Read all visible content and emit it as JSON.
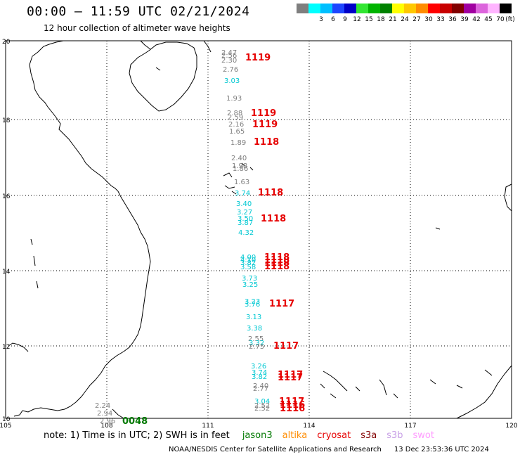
{
  "title": "00:00 – 11:59 UTC 02/21/2024",
  "subtitle": "12 hour collection of altimeter wave heights",
  "color_scale": {
    "unit_label": "(ft)",
    "bins": [
      {
        "label": "",
        "color": "#7f7f7f"
      },
      {
        "label": "3",
        "color": "#00ffff"
      },
      {
        "label": "6",
        "color": "#00bfff"
      },
      {
        "label": "9",
        "color": "#1e46ff"
      },
      {
        "label": "12",
        "color": "#0000c8"
      },
      {
        "label": "15",
        "color": "#32e632"
      },
      {
        "label": "18",
        "color": "#00b400"
      },
      {
        "label": "21",
        "color": "#008200"
      },
      {
        "label": "24",
        "color": "#ffff00"
      },
      {
        "label": "27",
        "color": "#ffc800"
      },
      {
        "label": "30",
        "color": "#ff8c00"
      },
      {
        "label": "33",
        "color": "#ff0000"
      },
      {
        "label": "36",
        "color": "#c80000"
      },
      {
        "label": "39",
        "color": "#820000"
      },
      {
        "label": "42",
        "color": "#a000a0"
      },
      {
        "label": "45",
        "color": "#dc64dc"
      },
      {
        "label": "70",
        "color": "#ffb4ff"
      },
      {
        "label": "",
        "color": "#000000"
      }
    ]
  },
  "axes": {
    "lon_ticks": [
      "105",
      "108",
      "111",
      "114",
      "117",
      "120"
    ],
    "lat_ticks": [
      "20",
      "18",
      "16",
      "14",
      "12",
      "10"
    ]
  },
  "observations": [
    {
      "v": "2.47",
      "c": "#7f7f7f"
    },
    {
      "v": "2.56",
      "c": "#7f7f7f"
    },
    {
      "v": "2.30",
      "c": "#7f7f7f"
    },
    {
      "v": "2.76",
      "c": "#7f7f7f"
    },
    {
      "v": "3.03",
      "c": "#00c8d2"
    },
    {
      "v": "1.93",
      "c": "#7f7f7f"
    },
    {
      "v": "2.88",
      "c": "#7f7f7f"
    },
    {
      "v": "2.59",
      "c": "#7f7f7f"
    },
    {
      "v": "2.16",
      "c": "#7f7f7f"
    },
    {
      "v": "1.65",
      "c": "#7f7f7f"
    },
    {
      "v": "1.89",
      "c": "#7f7f7f"
    },
    {
      "v": "2.40",
      "c": "#7f7f7f"
    },
    {
      "v": "1.98",
      "c": "#7f7f7f"
    },
    {
      "v": "1.86",
      "c": "#7f7f7f"
    },
    {
      "v": "1.63",
      "c": "#7f7f7f"
    },
    {
      "v": "3.74",
      "c": "#00c8d2"
    },
    {
      "v": "3.40",
      "c": "#00c8d2"
    },
    {
      "v": "3.27",
      "c": "#00c8d2"
    },
    {
      "v": "3.50",
      "c": "#00c8d2"
    },
    {
      "v": "3.87",
      "c": "#00c8d2"
    },
    {
      "v": "4.32",
      "c": "#00c8d2"
    },
    {
      "v": "4.00",
      "c": "#00c8d2"
    },
    {
      "v": "4.10",
      "c": "#00c8d2"
    },
    {
      "v": "3.82",
      "c": "#00c8d2"
    },
    {
      "v": "3.58",
      "c": "#00c8d2"
    },
    {
      "v": "3.73",
      "c": "#00c8d2"
    },
    {
      "v": "3.25",
      "c": "#00c8d2"
    },
    {
      "v": "3.23",
      "c": "#00c8d2"
    },
    {
      "v": "3.76",
      "c": "#00c8d2"
    },
    {
      "v": "3.13",
      "c": "#00c8d2"
    },
    {
      "v": "3.38",
      "c": "#00c8d2"
    },
    {
      "v": "2.55",
      "c": "#7f7f7f"
    },
    {
      "v": "3.32",
      "c": "#00c8d2"
    },
    {
      "v": "2.75",
      "c": "#7f7f7f"
    },
    {
      "v": "3.26",
      "c": "#00c8d2"
    },
    {
      "v": "3.74",
      "c": "#00c8d2"
    },
    {
      "v": "3.82",
      "c": "#00c8d2"
    },
    {
      "v": "2.40",
      "c": "#7f7f7f"
    },
    {
      "v": "2.77",
      "c": "#7f7f7f"
    },
    {
      "v": "3.04",
      "c": "#00c8d2"
    },
    {
      "v": "2.52",
      "c": "#7f7f7f"
    },
    {
      "v": "2.52",
      "c": "#7f7f7f"
    },
    {
      "v": "2.24",
      "c": "#7f7f7f"
    },
    {
      "v": "2.94",
      "c": "#7f7f7f"
    },
    {
      "v": "2.96",
      "c": "#7f7f7f"
    }
  ],
  "pass_times": [
    {
      "t": "1119",
      "c": "#e60000"
    },
    {
      "t": "1119",
      "c": "#e60000"
    },
    {
      "t": "1119",
      "c": "#e60000"
    },
    {
      "t": "1118",
      "c": "#e60000"
    },
    {
      "t": "1118",
      "c": "#e60000"
    },
    {
      "t": "1118",
      "c": "#e60000"
    },
    {
      "t": "1118",
      "c": "#e60000"
    },
    {
      "t": "1118",
      "c": "#e60000"
    },
    {
      "t": "1118",
      "c": "#e60000"
    },
    {
      "t": "1118",
      "c": "#e60000"
    },
    {
      "t": "1117",
      "c": "#e60000"
    },
    {
      "t": "1117",
      "c": "#e60000"
    },
    {
      "t": "1117",
      "c": "#e60000"
    },
    {
      "t": "1117",
      "c": "#e60000"
    },
    {
      "t": "1117",
      "c": "#e60000"
    },
    {
      "t": "1116",
      "c": "#e60000"
    },
    {
      "t": "1116",
      "c": "#e60000"
    },
    {
      "t": "0048",
      "c": "#007800"
    }
  ],
  "note": {
    "text": "note: 1) Time is in UTC; 2) SWH is in feet",
    "missions": [
      {
        "name": "jason3",
        "color": "#007800"
      },
      {
        "name": "altika",
        "color": "#ff8c00"
      },
      {
        "name": "cryosat",
        "color": "#e60000"
      },
      {
        "name": "s3a",
        "color": "#820000"
      },
      {
        "name": "s3b",
        "color": "#c8a0e6"
      },
      {
        "name": "swot",
        "color": "#ff9cff"
      }
    ]
  },
  "credit": "NOAA/NESDIS Center for Satellite Applications and Research",
  "timestamp": "13 Dec 23:53:36 UTC 2024"
}
